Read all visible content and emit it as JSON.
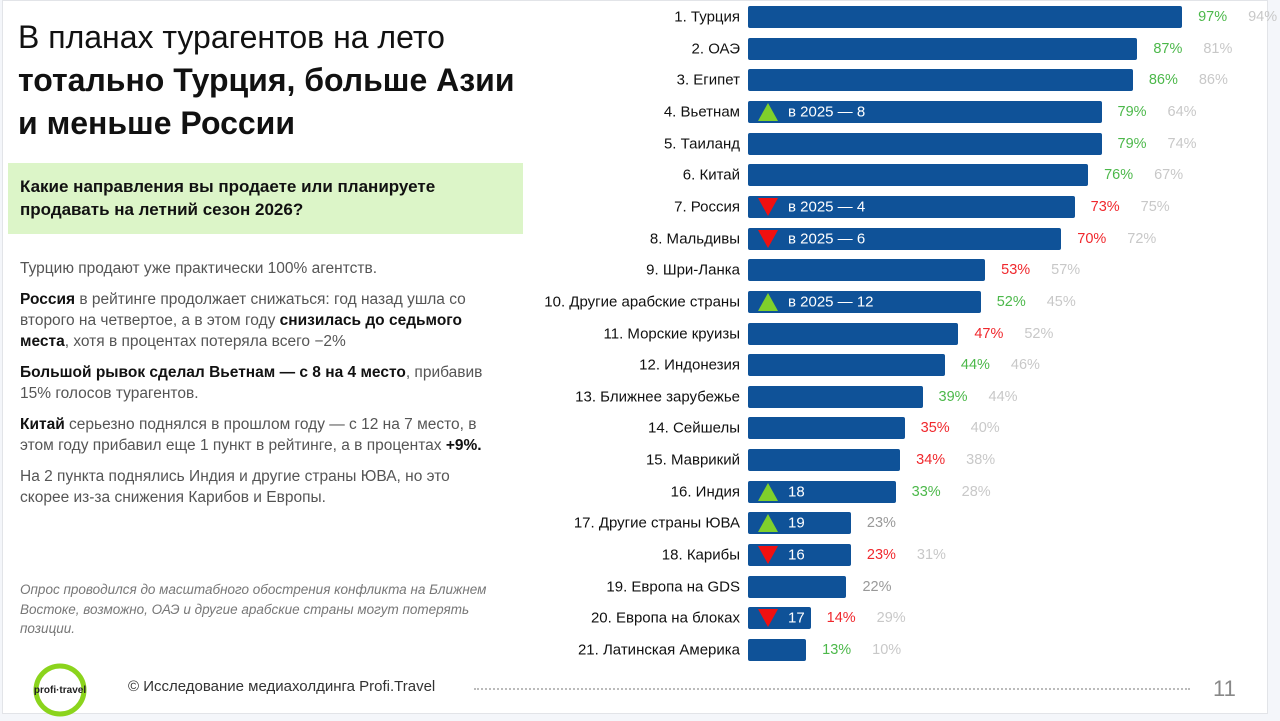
{
  "title": {
    "line1": "В планах турагентов на лето",
    "line2": "тотально Турция, больше Азии",
    "line3": "и меньше России"
  },
  "question": "Какие направления вы продаете или планируете продавать на летний сезон 2026?",
  "body": {
    "p1": "Турцию продают уже практически 100% агентств.",
    "p2": {
      "b1": "Россия",
      "t1": " в рейтинге продолжает снижаться: год назад ушла со второго на четвертое, а в этом году ",
      "b2": "снизилась до седьмого места",
      "t2": ", хотя в процентах потеряла всего −2%"
    },
    "p3": {
      "b1": "Большой рывок сделал Вьетнам — с 8 на 4 место",
      "t1": ", прибавив 15% голосов турагентов."
    },
    "p4": {
      "b1": "Китай",
      "t1": " серьезно поднялся в прошлом году — с 12 на 7 место, в этом году прибавил еще 1 пункт в рейтинге, а в процентах ",
      "b2": "+9%."
    },
    "p5": "На 2 пункта поднялись Индия и другие страны ЮВА, но это скорее из-за снижения Карибов и Европы."
  },
  "note": "Опрос проводился до масштабного обострения конфликта на Ближнем Востоке, возможно, ОАЭ и другие арабские страны могут потерять позиции.",
  "footer": {
    "logo_text": "profi+travel",
    "copyright": "© Исследование медиахолдинга Profi.Travel",
    "page": "11"
  },
  "colors": {
    "bar": "#0f5298",
    "green": "#4cb84a",
    "red": "#f0282d",
    "gray": "#c8c8c8",
    "neutral": "#999999",
    "up": "#7fd02c",
    "down": "#f01010",
    "question_bg": "#dcf5c8"
  },
  "chart_data": {
    "type": "bar",
    "orientation": "horizontal",
    "xlim": [
      0,
      100
    ],
    "unit": "%",
    "categories": [
      "1. Турция",
      "2. ОАЭ",
      "3. Египет",
      "4. Вьетнам",
      "5. Таиланд",
      "6. Китай",
      "7. Россия",
      "8. Мальдивы",
      "9. Шри-Ланка",
      "10. Другие арабские страны",
      "11. Морские круизы",
      "12. Индонезия",
      "13. Ближнее зарубежье",
      "14. Сейшелы",
      "15. Маврикий",
      "16. Индия",
      "17. Другие страны ЮВА",
      "18. Карибы",
      "19. Европа на GDS",
      "20. Европа на блоках",
      "21. Латинская Америка"
    ],
    "series": [
      {
        "values": [
          97,
          87,
          86,
          79,
          79,
          76,
          73,
          70,
          53,
          52,
          47,
          44,
          39,
          35,
          34,
          33,
          23,
          23,
          22,
          14,
          13
        ]
      },
      {
        "values": [
          94,
          81,
          86,
          64,
          74,
          67,
          75,
          72,
          57,
          45,
          52,
          46,
          44,
          40,
          38,
          28,
          null,
          31,
          null,
          29,
          10
        ]
      }
    ],
    "value_colors": [
      "green",
      "green",
      "green",
      "green",
      "green",
      "green",
      "red",
      "red",
      "red",
      "green",
      "red",
      "green",
      "green",
      "red",
      "red",
      "green",
      "neutral",
      "red",
      "neutral",
      "red",
      "green"
    ],
    "annotations": [
      {
        "index": 3,
        "direction": "up",
        "text": "в 2025 — 8"
      },
      {
        "index": 6,
        "direction": "down",
        "text": "в 2025 — 4"
      },
      {
        "index": 7,
        "direction": "down",
        "text": "в 2025 — 6"
      },
      {
        "index": 9,
        "direction": "up",
        "text": "в 2025 — 12"
      },
      {
        "index": 15,
        "direction": "up",
        "text": "18"
      },
      {
        "index": 16,
        "direction": "up",
        "text": "19"
      },
      {
        "index": 17,
        "direction": "down",
        "text": "16"
      },
      {
        "index": 19,
        "direction": "down",
        "text": "17"
      }
    ]
  }
}
